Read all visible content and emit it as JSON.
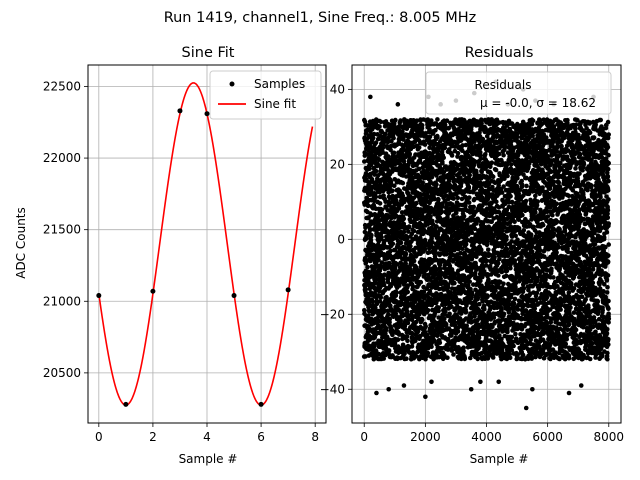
{
  "figure": {
    "suptitle": "Run 1419, channel1, Sine Freq.: 8.005 MHz"
  },
  "chart_data": [
    {
      "type": "line",
      "title": "Sine Fit",
      "xlabel": "Sample #",
      "ylabel": "ADC Counts",
      "xlim": [
        -0.4,
        8.4
      ],
      "ylim": [
        20150,
        22650
      ],
      "xticks": [
        0,
        2,
        4,
        6,
        8
      ],
      "yticks": [
        20500,
        21000,
        21500,
        22000,
        22500
      ],
      "grid": true,
      "legend": {
        "position": "upper right",
        "entries": [
          "Samples",
          "Sine fit"
        ]
      },
      "fit": {
        "offset": 21400,
        "amplitude": 1125,
        "period": 5,
        "phase_sample": 3.5,
        "x_start": 0,
        "x_end": 7.9
      },
      "series": [
        {
          "name": "Samples",
          "kind": "scatter",
          "color": "#000000",
          "x": [
            0,
            1,
            2,
            3,
            4,
            5,
            6,
            7
          ],
          "y": [
            21040,
            20280,
            21070,
            22330,
            22310,
            21040,
            20280,
            21080
          ]
        },
        {
          "name": "Sine fit",
          "kind": "line",
          "color": "#ff0000"
        }
      ]
    },
    {
      "type": "scatter",
      "title": "Residuals",
      "xlabel": "Sample #",
      "ylabel": "",
      "xlim": [
        -400,
        8400
      ],
      "ylim": [
        -49,
        46.5
      ],
      "xticks": [
        0,
        2000,
        4000,
        6000,
        8000
      ],
      "yticks": [
        -40,
        -20,
        0,
        20,
        40
      ],
      "grid": true,
      "legend": {
        "position": "upper right",
        "entries": [
          "Residuals"
        ],
        "subtitle": "μ = -0.0, σ = 18.62"
      },
      "series": [
        {
          "name": "Residuals",
          "color": "#000000",
          "n_points": 8000,
          "mean": 0.0,
          "std": 18.62,
          "x_range": [
            0,
            8000
          ],
          "y_range_typical": [
            -32,
            32
          ],
          "outliers": [
            [
              200,
              38
            ],
            [
              400,
              -41
            ],
            [
              800,
              -40
            ],
            [
              1100,
              36
            ],
            [
              1300,
              -39
            ],
            [
              2000,
              -42
            ],
            [
              2100,
              38
            ],
            [
              2200,
              -38
            ],
            [
              2500,
              36
            ],
            [
              3000,
              37
            ],
            [
              3500,
              -40
            ],
            [
              3600,
              39
            ],
            [
              4300,
              42
            ],
            [
              4400,
              -38
            ],
            [
              5300,
              -45
            ],
            [
              5200,
              40
            ],
            [
              5500,
              -40
            ],
            [
              5600,
              37
            ],
            [
              6200,
              36
            ],
            [
              6700,
              -41
            ],
            [
              7100,
              -39
            ],
            [
              7500,
              38
            ],
            [
              3800,
              -38
            ],
            [
              4700,
              36
            ]
          ]
        }
      ]
    }
  ]
}
